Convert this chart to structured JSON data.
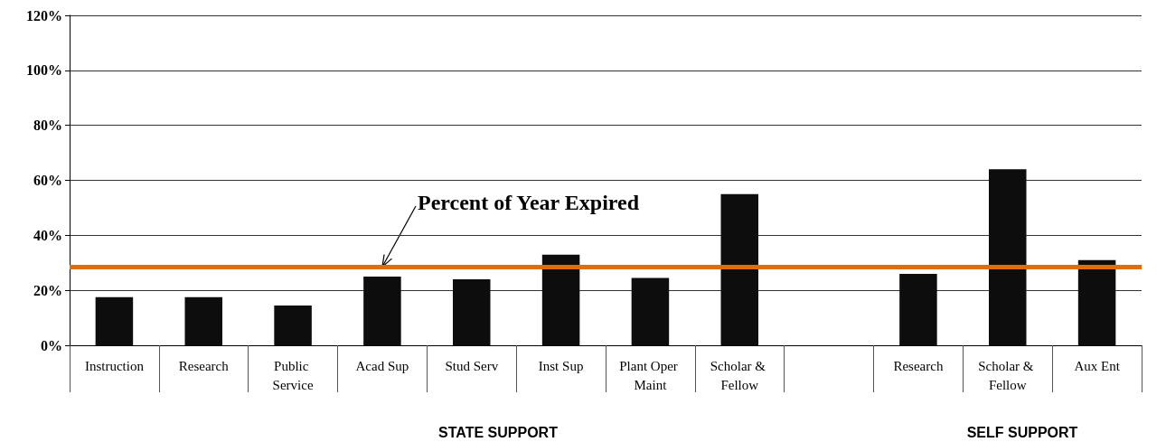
{
  "chart_data": {
    "type": "bar",
    "categories": [
      "Instruction",
      "Research",
      "Public Service",
      "Acad Sup",
      "Stud Serv",
      "Inst Sup",
      "Plant Oper Maint",
      "Scholar & Fellow",
      null,
      "Research",
      "Scholar & Fellow",
      "Aux Ent"
    ],
    "values": [
      17.5,
      17.5,
      14.5,
      25,
      24,
      33,
      24.5,
      55,
      null,
      26,
      64,
      31
    ],
    "color": "#0d0d0d",
    "ylim": [
      0,
      120
    ],
    "yticks": [
      {
        "value": 0,
        "label": "0%"
      },
      {
        "value": 20,
        "label": "20%"
      },
      {
        "value": 40,
        "label": "40%"
      },
      {
        "value": 60,
        "label": "60%"
      },
      {
        "value": 80,
        "label": "80%"
      },
      {
        "value": 100,
        "label": "100%"
      },
      {
        "value": 120,
        "label": "120%"
      }
    ],
    "grid": "y",
    "ref_lines": [
      {
        "axis": "y",
        "value": 28.5,
        "label": "Percent of Year Expired",
        "color": "#e36c0a"
      }
    ],
    "annotations": [
      "STATE SUPPORT",
      "SELF SUPPORT"
    ]
  }
}
